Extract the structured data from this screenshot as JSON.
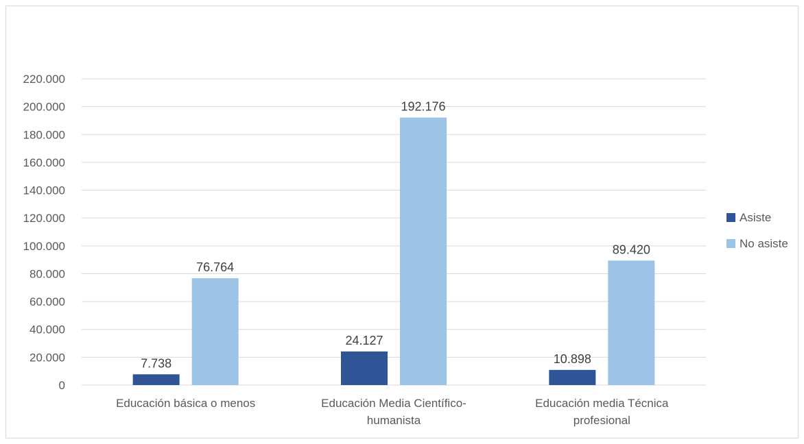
{
  "chart_data": {
    "type": "bar",
    "categories": [
      [
        "Educación básica o menos"
      ],
      [
        "Educación Media Científico-",
        "humanista"
      ],
      [
        "Educación media Técnica",
        "profesional"
      ]
    ],
    "series": [
      {
        "name": "Asiste",
        "values": [
          7738,
          24127,
          10898
        ],
        "labels": [
          "7.738",
          "24.127",
          "10.898"
        ],
        "color": "#2f5597"
      },
      {
        "name": "No asiste",
        "values": [
          76764,
          192176,
          89420
        ],
        "labels": [
          "76.764",
          "192.176",
          "89.420"
        ],
        "color": "#9dc3e6"
      }
    ],
    "ylim": [
      0,
      220000
    ],
    "yticks": [
      0,
      20000,
      40000,
      60000,
      80000,
      100000,
      120000,
      140000,
      160000,
      180000,
      200000,
      220000
    ],
    "ytick_labels": [
      "0",
      "20.000",
      "40.000",
      "60.000",
      "80.000",
      "100.000",
      "120.000",
      "140.000",
      "160.000",
      "180.000",
      "200.000",
      "220.000"
    ],
    "grid": true,
    "legend_position": "right",
    "gridline_color": "#d9d9d9"
  }
}
